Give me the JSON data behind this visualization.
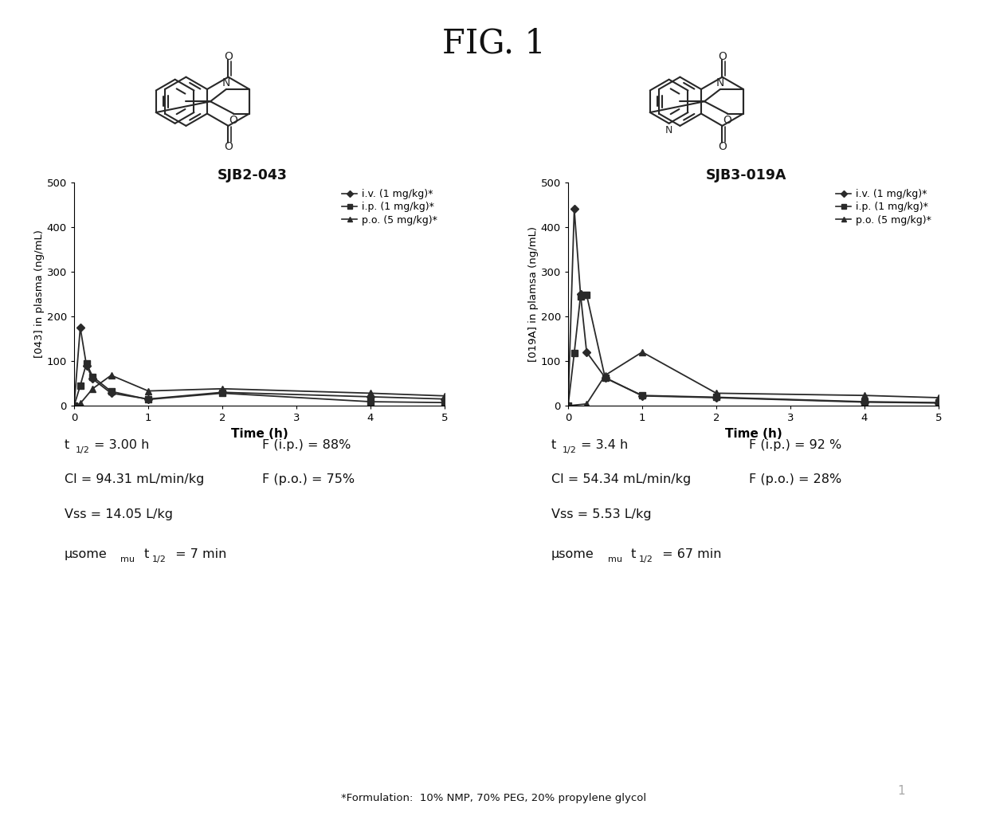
{
  "title": "FIG. 1",
  "left_compound_name": "SJB2-043",
  "right_compound_name": "SJB3-019A",
  "left_ylabel": "[043] in plasma (ng/mL)",
  "right_ylabel": "[019A] in plamsa (ng/mL)",
  "xlabel": "Time (h)",
  "ylim": [
    0,
    500
  ],
  "xlim": [
    0,
    5
  ],
  "yticks": [
    0,
    100,
    200,
    300,
    400,
    500
  ],
  "xticks": [
    0,
    1,
    2,
    3,
    4,
    5
  ],
  "legend_entries": [
    "i.v. (1 mg/kg)*",
    "i.p. (1 mg/kg)*",
    "p.o. (5 mg/kg)*"
  ],
  "left_iv_x": [
    0.0,
    0.083,
    0.167,
    0.25,
    0.5,
    1.0,
    2.0,
    4.0,
    5.0
  ],
  "left_iv_y": [
    0.0,
    175,
    90,
    60,
    28,
    15,
    30,
    20,
    15
  ],
  "left_ip_x": [
    0.0,
    0.083,
    0.167,
    0.25,
    0.5,
    1.0,
    2.0,
    4.0,
    5.0
  ],
  "left_ip_y": [
    0.0,
    45,
    95,
    65,
    32,
    14,
    28,
    9,
    7
  ],
  "left_po_x": [
    0.0,
    0.083,
    0.25,
    0.5,
    1.0,
    2.0,
    4.0,
    5.0
  ],
  "left_po_y": [
    0.0,
    5,
    38,
    68,
    33,
    38,
    28,
    22
  ],
  "right_iv_x": [
    0.0,
    0.083,
    0.167,
    0.25,
    0.5,
    1.0,
    2.0,
    4.0,
    5.0
  ],
  "right_iv_y": [
    0.0,
    440,
    250,
    120,
    63,
    22,
    18,
    8,
    6
  ],
  "right_ip_x": [
    0.0,
    0.083,
    0.167,
    0.25,
    0.5,
    1.0,
    2.0,
    4.0,
    5.0
  ],
  "right_ip_y": [
    0.0,
    118,
    245,
    248,
    62,
    23,
    19,
    9,
    7
  ],
  "right_po_x": [
    0.0,
    0.25,
    0.5,
    1.0,
    2.0,
    4.0,
    5.0
  ],
  "right_po_y": [
    0.0,
    4,
    68,
    120,
    28,
    23,
    18
  ],
  "line_color": "#2a2a2a",
  "background_color": "#ffffff",
  "footnote": "*Formulation:  10% NMP, 70% PEG, 20% propylene glycol",
  "page_number": "1"
}
